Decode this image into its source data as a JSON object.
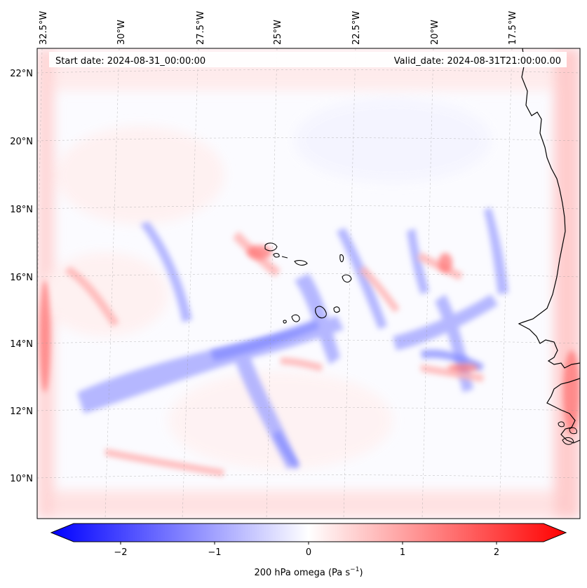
{
  "map": {
    "start_date_text": "Start date: 2024-08-31_00:00:00",
    "valid_date_text": "Valid_date: 2024-08-31T21:00:00.00",
    "lon_labels": [
      "32.5°W",
      "30°W",
      "27.5°W",
      "25°W",
      "22.5°W",
      "20°W",
      "17.5°W"
    ],
    "lat_labels": [
      "22°N",
      "20°N",
      "18°N",
      "16°N",
      "14°N",
      "12°N",
      "10°N"
    ],
    "lon_values": [
      -32.5,
      -30,
      -27.5,
      -25,
      -22.5,
      -20,
      -17.5
    ],
    "lat_values": [
      22,
      20,
      18,
      16,
      14,
      12,
      10
    ],
    "extent": {
      "lon": [
        -33.2,
        -15.2
      ],
      "lat": [
        8.9,
        22.8
      ]
    }
  },
  "colorbar": {
    "label_main": "200 hPa omega (Pa s",
    "label_sup": "−1",
    "label_close": ")",
    "range": [
      -2.5,
      2.5
    ],
    "ticks": [
      -2,
      -1,
      0,
      1,
      2
    ],
    "tick_labels": [
      "−2",
      "−1",
      "0",
      "1",
      "2"
    ],
    "colormap": "bwr",
    "color_low": "#0000ff",
    "color_mid": "#ffffff",
    "color_high": "#ff0000"
  }
}
